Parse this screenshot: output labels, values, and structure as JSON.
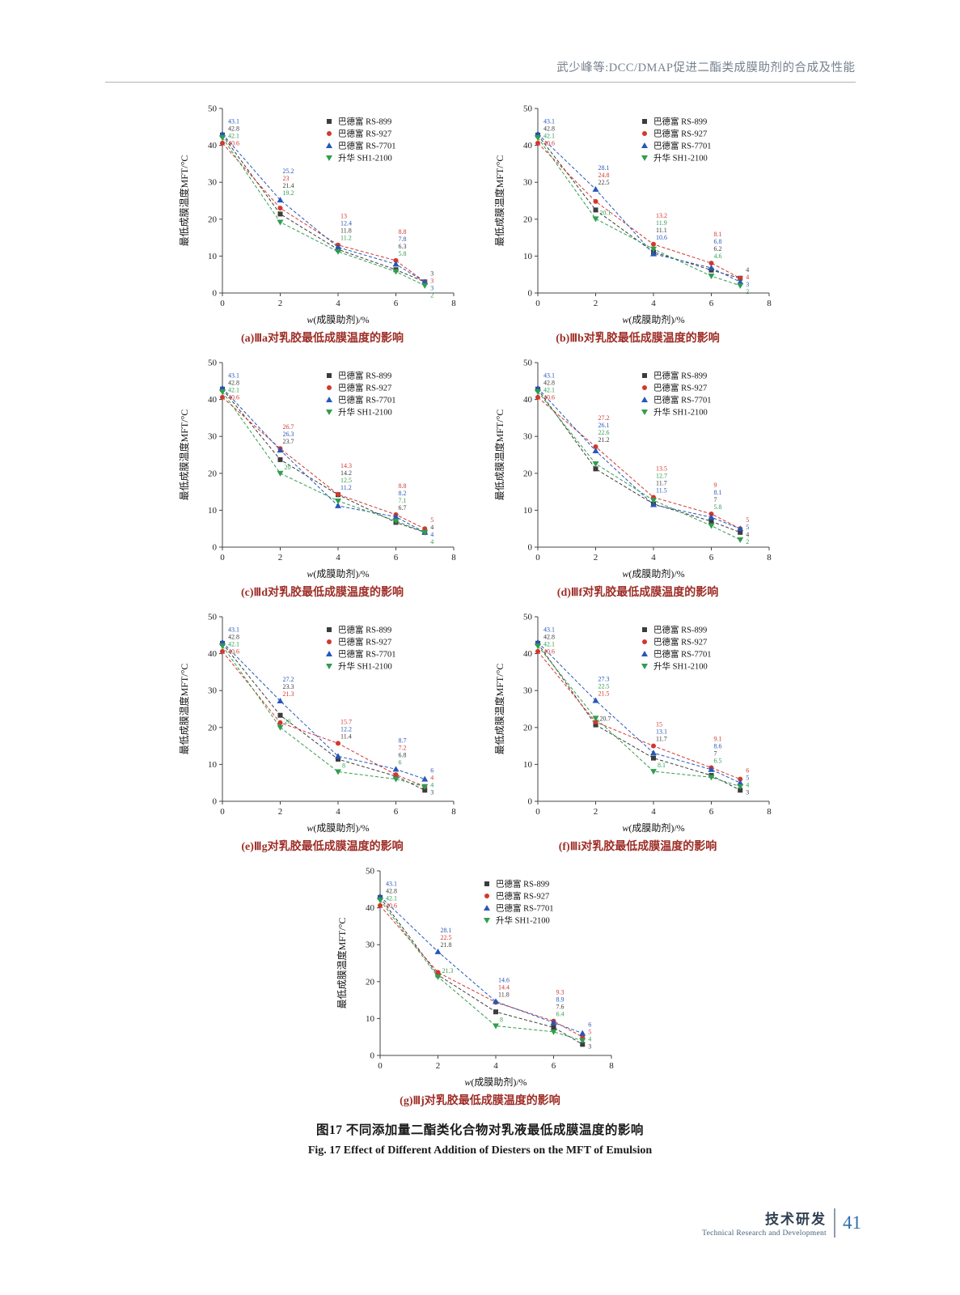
{
  "page": {
    "header": "武少峰等:DCC/DMAP促进二酯类成膜助剂的合成及性能",
    "figure_caption_zh": "图17  不同添加量二酯类化合物对乳液最低成膜温度的影响",
    "figure_caption_en": "Fig. 17    Effect of Different Addition of Diesters on the MFT of Emulsion",
    "footer": {
      "zh": "技术研发",
      "en": "Technical Research and Development",
      "page_number": "41"
    }
  },
  "axes": {
    "ylabel": "最低成膜温度MFT/°C",
    "xlabel_italic": "w",
    "xlabel_rest": "(成膜助剂)/%",
    "ylim": [
      0,
      50
    ],
    "xlim": [
      0,
      8
    ],
    "yticks": [
      0,
      10,
      20,
      30,
      40,
      50
    ],
    "xticks": [
      0,
      2,
      4,
      6,
      8
    ],
    "grid": false,
    "legend_position": "top-right-inside"
  },
  "legend": [
    {
      "name": "巴德富 RS-899",
      "marker": "square",
      "color": "#3c3c3c"
    },
    {
      "name": "巴德富 RS-927",
      "marker": "circle",
      "color": "#d2382e"
    },
    {
      "name": "巴德富 RS-7701",
      "marker": "triangle-up",
      "color": "#2757b9"
    },
    {
      "name": "升华 SH1-2100",
      "marker": "triangle-down",
      "color": "#2f9e4f"
    }
  ],
  "chart_data": [
    {
      "id": "a",
      "type": "line",
      "caption": "(a)Ⅲa对乳胶最低成膜温度的影响",
      "x": [
        0,
        2,
        4,
        6,
        7
      ],
      "series": [
        {
          "name": "巴德富 RS-899",
          "values": [
            42.8,
            21.4,
            11.8,
            6.3,
            3
          ]
        },
        {
          "name": "巴德富 RS-927",
          "values": [
            40.6,
            23,
            13,
            8.8,
            3
          ]
        },
        {
          "name": "巴德富 RS-7701",
          "values": [
            43.1,
            25.2,
            12.4,
            7.8,
            3
          ]
        },
        {
          "name": "升华 SH1-2100",
          "values": [
            42.1,
            19.2,
            11.2,
            5.8,
            2
          ]
        }
      ]
    },
    {
      "id": "b",
      "type": "line",
      "caption": "(b)Ⅲb对乳胶最低成膜温度的影响",
      "x": [
        0,
        2,
        4,
        6,
        7
      ],
      "series": [
        {
          "name": "巴德富 RS-899",
          "values": [
            42.8,
            22.5,
            11.1,
            6.2,
            4
          ]
        },
        {
          "name": "巴德富 RS-927",
          "values": [
            40.6,
            24.8,
            13.2,
            8.1,
            4
          ]
        },
        {
          "name": "巴德富 RS-7701",
          "values": [
            43.1,
            28.1,
            10.6,
            6.8,
            3
          ]
        },
        {
          "name": "升华 SH1-2100",
          "values": [
            42.1,
            20.1,
            11.9,
            4.6,
            2
          ]
        }
      ]
    },
    {
      "id": "c",
      "type": "line",
      "caption": "(c)Ⅲd对乳胶最低成膜温度的影响",
      "x": [
        0,
        2,
        4,
        6,
        7
      ],
      "series": [
        {
          "name": "巴德富 RS-899",
          "values": [
            42.8,
            23.7,
            14.2,
            6.7,
            4
          ]
        },
        {
          "name": "巴德富 RS-927",
          "values": [
            40.6,
            26.7,
            14.3,
            8.8,
            5
          ]
        },
        {
          "name": "巴德富 RS-7701",
          "values": [
            43.1,
            26.3,
            11.2,
            8.2,
            4
          ]
        },
        {
          "name": "升华 SH1-2100",
          "values": [
            42.1,
            20,
            12.5,
            7.1,
            4
          ]
        }
      ]
    },
    {
      "id": "d",
      "type": "line",
      "caption": "(d)Ⅲf对乳胶最低成膜温度的影响",
      "x": [
        0,
        2,
        4,
        6,
        7
      ],
      "series": [
        {
          "name": "巴德富 RS-899",
          "values": [
            42.8,
            21.2,
            11.7,
            7,
            4
          ]
        },
        {
          "name": "巴德富 RS-927",
          "values": [
            40.6,
            27.2,
            13.5,
            9,
            5
          ]
        },
        {
          "name": "巴德富 RS-7701",
          "values": [
            43.1,
            26.1,
            11.5,
            8.1,
            5
          ]
        },
        {
          "name": "升华 SH1-2100",
          "values": [
            42.1,
            22.6,
            12.7,
            5.8,
            2
          ]
        }
      ]
    },
    {
      "id": "e",
      "type": "line",
      "caption": "(e)Ⅲg对乳胶最低成膜温度的影响",
      "x": [
        0,
        2,
        4,
        6,
        7
      ],
      "series": [
        {
          "name": "巴德富 RS-899",
          "values": [
            42.8,
            23.3,
            11.4,
            6.8,
            3
          ]
        },
        {
          "name": "巴德富 RS-927",
          "values": [
            40.6,
            21.3,
            15.7,
            7.2,
            4
          ]
        },
        {
          "name": "巴德富 RS-7701",
          "values": [
            43.1,
            27.2,
            12.2,
            8.7,
            6
          ]
        },
        {
          "name": "升华 SH1-2100",
          "values": [
            42.1,
            20,
            8,
            6,
            4
          ]
        }
      ]
    },
    {
      "id": "f",
      "type": "line",
      "caption": "(f)Ⅲi对乳胶最低成膜温度的影响",
      "x": [
        0,
        2,
        4,
        6,
        7
      ],
      "series": [
        {
          "name": "巴德富 RS-899",
          "values": [
            42.8,
            20.7,
            11.7,
            7,
            3
          ]
        },
        {
          "name": "巴德富 RS-927",
          "values": [
            40.6,
            21.5,
            15,
            9.1,
            6
          ]
        },
        {
          "name": "巴德富 RS-7701",
          "values": [
            43.1,
            27.3,
            13.1,
            8.6,
            5
          ]
        },
        {
          "name": "升华 SH1-2100",
          "values": [
            42.1,
            22.5,
            8.1,
            6.5,
            4
          ]
        }
      ]
    },
    {
      "id": "g",
      "type": "line",
      "caption": "(g)Ⅲj对乳胶最低成膜温度的影响",
      "x": [
        0,
        2,
        4,
        6,
        7
      ],
      "series": [
        {
          "name": "巴德富 RS-899",
          "values": [
            42.8,
            21.8,
            11.8,
            7.6,
            3
          ]
        },
        {
          "name": "巴德富 RS-927",
          "values": [
            40.6,
            22.5,
            14.4,
            9.3,
            5
          ]
        },
        {
          "name": "巴德富 RS-7701",
          "values": [
            43.1,
            28.1,
            14.6,
            8.9,
            6
          ]
        },
        {
          "name": "升华 SH1-2100",
          "values": [
            42.1,
            21.3,
            8,
            6.4,
            4
          ]
        }
      ]
    }
  ]
}
